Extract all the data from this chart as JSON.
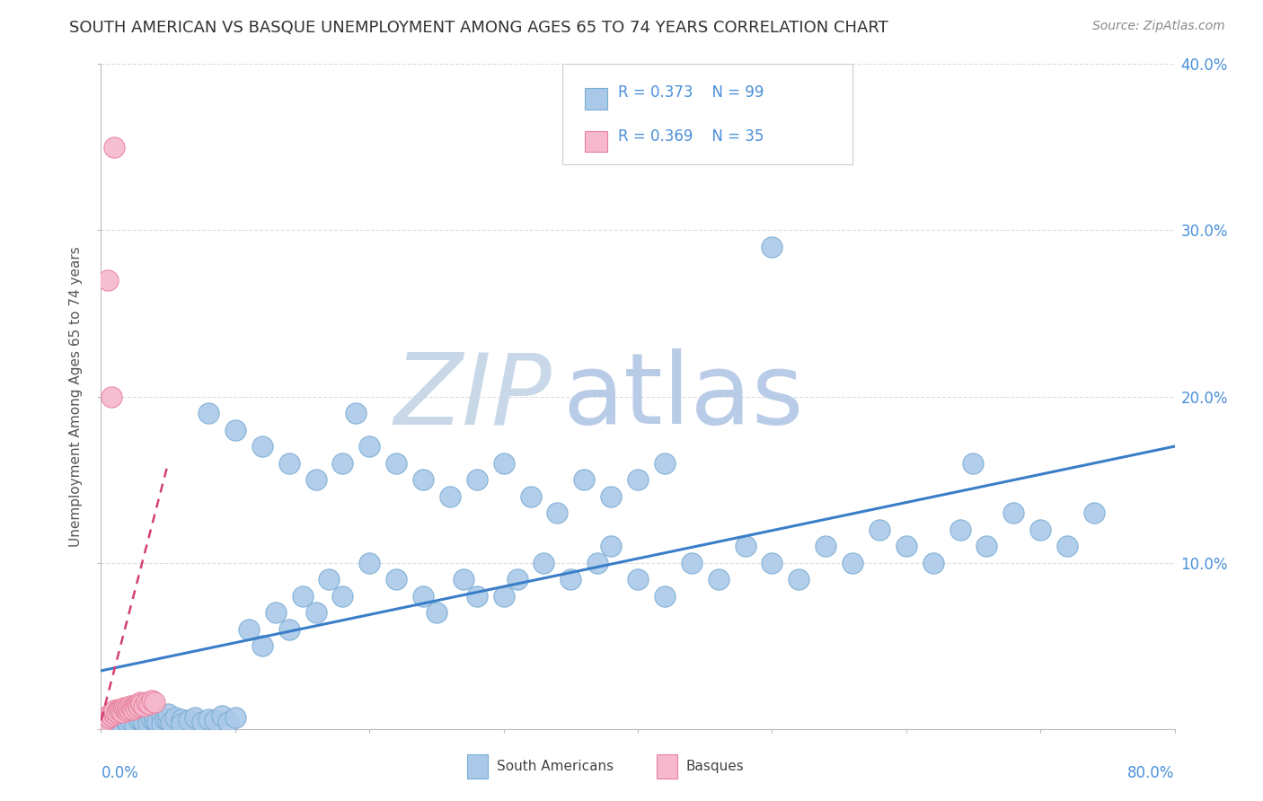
{
  "title": "SOUTH AMERICAN VS BASQUE UNEMPLOYMENT AMONG AGES 65 TO 74 YEARS CORRELATION CHART",
  "source": "Source: ZipAtlas.com",
  "ylabel": "Unemployment Among Ages 65 to 74 years",
  "xlim": [
    0,
    0.8
  ],
  "ylim": [
    0,
    0.4
  ],
  "series1_label": "South Americans",
  "series1_R": "0.373",
  "series1_N": "99",
  "series1_color": "#aac9e8",
  "series1_edge": "#7aadd4",
  "series2_label": "Basques",
  "series2_R": "0.369",
  "series2_N": "35",
  "series2_color": "#f5b8cc",
  "series2_edge": "#e8809e",
  "trendline1_color": "#3a7ec8",
  "trendline2_color": "#d44070",
  "watermark_zip": "ZIP",
  "watermark_atlas": "atlas",
  "watermark_zip_color": "#c8d8e8",
  "watermark_atlas_color": "#b8cce8",
  "title_color": "#333333",
  "legend_text_color": "#4a90d9",
  "legend_label_color": "#222222",
  "grid_color": "#dddddd",
  "south_americans_x": [
    0.005,
    0.008,
    0.01,
    0.01,
    0.012,
    0.015,
    0.015,
    0.018,
    0.02,
    0.02,
    0.022,
    0.025,
    0.025,
    0.028,
    0.03,
    0.03,
    0.032,
    0.035,
    0.035,
    0.038,
    0.04,
    0.04,
    0.042,
    0.045,
    0.045,
    0.048,
    0.05,
    0.05,
    0.052,
    0.055,
    0.06,
    0.06,
    0.065,
    0.07,
    0.075,
    0.08,
    0.085,
    0.09,
    0.095,
    0.1,
    0.11,
    0.12,
    0.13,
    0.14,
    0.15,
    0.16,
    0.17,
    0.18,
    0.2,
    0.22,
    0.24,
    0.25,
    0.27,
    0.28,
    0.3,
    0.31,
    0.33,
    0.35,
    0.37,
    0.38,
    0.4,
    0.42,
    0.44,
    0.46,
    0.48,
    0.5,
    0.52,
    0.54,
    0.56,
    0.58,
    0.6,
    0.62,
    0.64,
    0.66,
    0.68,
    0.7,
    0.72,
    0.74,
    0.5,
    0.19,
    0.08,
    0.1,
    0.12,
    0.14,
    0.16,
    0.18,
    0.2,
    0.22,
    0.24,
    0.26,
    0.28,
    0.3,
    0.32,
    0.34,
    0.36,
    0.38,
    0.4,
    0.42,
    0.65
  ],
  "south_americans_y": [
    0.005,
    0.008,
    0.01,
    0.005,
    0.007,
    0.009,
    0.003,
    0.006,
    0.004,
    0.008,
    0.005,
    0.007,
    0.003,
    0.006,
    0.005,
    0.009,
    0.004,
    0.007,
    0.003,
    0.006,
    0.005,
    0.008,
    0.004,
    0.007,
    0.003,
    0.006,
    0.005,
    0.009,
    0.004,
    0.007,
    0.006,
    0.003,
    0.005,
    0.007,
    0.004,
    0.006,
    0.005,
    0.008,
    0.004,
    0.007,
    0.06,
    0.05,
    0.07,
    0.06,
    0.08,
    0.07,
    0.09,
    0.08,
    0.1,
    0.09,
    0.08,
    0.07,
    0.09,
    0.08,
    0.08,
    0.09,
    0.1,
    0.09,
    0.1,
    0.11,
    0.09,
    0.08,
    0.1,
    0.09,
    0.11,
    0.1,
    0.09,
    0.11,
    0.1,
    0.12,
    0.11,
    0.1,
    0.12,
    0.11,
    0.13,
    0.12,
    0.11,
    0.13,
    0.29,
    0.19,
    0.19,
    0.18,
    0.17,
    0.16,
    0.15,
    0.16,
    0.17,
    0.16,
    0.15,
    0.14,
    0.15,
    0.16,
    0.14,
    0.13,
    0.15,
    0.14,
    0.15,
    0.16,
    0.16
  ],
  "basques_x": [
    0.003,
    0.005,
    0.006,
    0.007,
    0.008,
    0.009,
    0.01,
    0.01,
    0.012,
    0.013,
    0.014,
    0.015,
    0.016,
    0.017,
    0.018,
    0.019,
    0.02,
    0.021,
    0.022,
    0.023,
    0.024,
    0.025,
    0.026,
    0.027,
    0.028,
    0.029,
    0.03,
    0.032,
    0.034,
    0.036,
    0.038,
    0.04,
    0.005,
    0.008,
    0.01
  ],
  "basques_y": [
    0.005,
    0.008,
    0.007,
    0.009,
    0.008,
    0.01,
    0.009,
    0.011,
    0.01,
    0.012,
    0.011,
    0.012,
    0.01,
    0.013,
    0.012,
    0.011,
    0.013,
    0.012,
    0.014,
    0.013,
    0.012,
    0.014,
    0.013,
    0.015,
    0.014,
    0.016,
    0.015,
    0.014,
    0.016,
    0.015,
    0.017,
    0.016,
    0.27,
    0.2,
    0.35
  ],
  "trendline1_x": [
    0.0,
    0.8
  ],
  "trendline1_y": [
    0.035,
    0.17
  ],
  "trendline2_x": [
    0.0,
    0.05
  ],
  "trendline2_y": [
    0.005,
    0.16
  ]
}
